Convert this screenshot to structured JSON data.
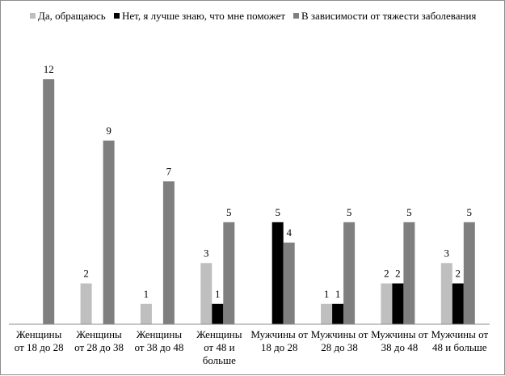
{
  "chart_data": {
    "type": "bar",
    "title": "",
    "xlabel": "",
    "ylabel": "",
    "ylim": [
      0,
      12
    ],
    "grid": false,
    "legend_position": "top",
    "categories": [
      [
        "Женщины",
        "от 18 до 28"
      ],
      [
        "Женщины",
        "от 28 до 38"
      ],
      [
        "Женщины",
        "от 38 до 48"
      ],
      [
        "Женщины",
        "от 48 и",
        "больше"
      ],
      [
        "Мужчины от",
        "18 до 28"
      ],
      [
        "Мужчины от",
        "28 до 38"
      ],
      [
        "Мужчины от",
        "38 до 48"
      ],
      [
        "Мужчины от",
        "48 и больше"
      ]
    ],
    "series": [
      {
        "name": "Да, обращаюсь",
        "color": "#bfbfbf",
        "values": [
          null,
          2,
          1,
          3,
          null,
          1,
          2,
          3
        ]
      },
      {
        "name": "Нет, я лучше знаю, что мне поможет",
        "color": "#000000",
        "values": [
          null,
          null,
          null,
          1,
          5,
          1,
          2,
          2
        ]
      },
      {
        "name": "В зависимости от тяжести заболевания",
        "color": "#7f7f7f",
        "values": [
          12,
          9,
          7,
          5,
          4,
          5,
          5,
          5
        ]
      }
    ]
  }
}
